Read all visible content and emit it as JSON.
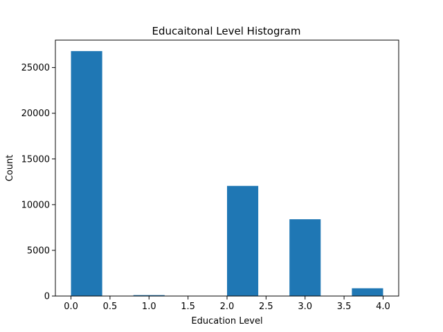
{
  "chart_data": {
    "type": "bar",
    "title": "Educaitonal Level Histogram",
    "xlabel": "Education Level",
    "ylabel": "Count",
    "bar_color": "#1f77b4",
    "xlim": [
      -0.2,
      4.2
    ],
    "ylim": [
      0,
      28000
    ],
    "xticks": [
      0.0,
      0.5,
      1.0,
      1.5,
      2.0,
      2.5,
      3.0,
      3.5,
      4.0
    ],
    "xtick_labels": [
      "0.0",
      "0.5",
      "1.0",
      "1.5",
      "2.0",
      "2.5",
      "3.0",
      "3.5",
      "4.0"
    ],
    "yticks": [
      0,
      5000,
      10000,
      15000,
      20000,
      25000
    ],
    "ytick_labels": [
      "0",
      "5000",
      "10000",
      "15000",
      "20000",
      "25000"
    ],
    "bins": [
      {
        "start": 0.0,
        "end": 0.4,
        "count": 26800
      },
      {
        "start": 0.4,
        "end": 0.8,
        "count": 0
      },
      {
        "start": 0.8,
        "end": 1.2,
        "count": 100
      },
      {
        "start": 1.2,
        "end": 1.6,
        "count": 0
      },
      {
        "start": 1.6,
        "end": 2.0,
        "count": 0
      },
      {
        "start": 2.0,
        "end": 2.4,
        "count": 12050
      },
      {
        "start": 2.4,
        "end": 2.8,
        "count": 0
      },
      {
        "start": 2.8,
        "end": 3.2,
        "count": 8400
      },
      {
        "start": 3.2,
        "end": 3.6,
        "count": 0
      },
      {
        "start": 3.6,
        "end": 4.0,
        "count": 850
      }
    ],
    "grid": false,
    "legend": "none"
  }
}
